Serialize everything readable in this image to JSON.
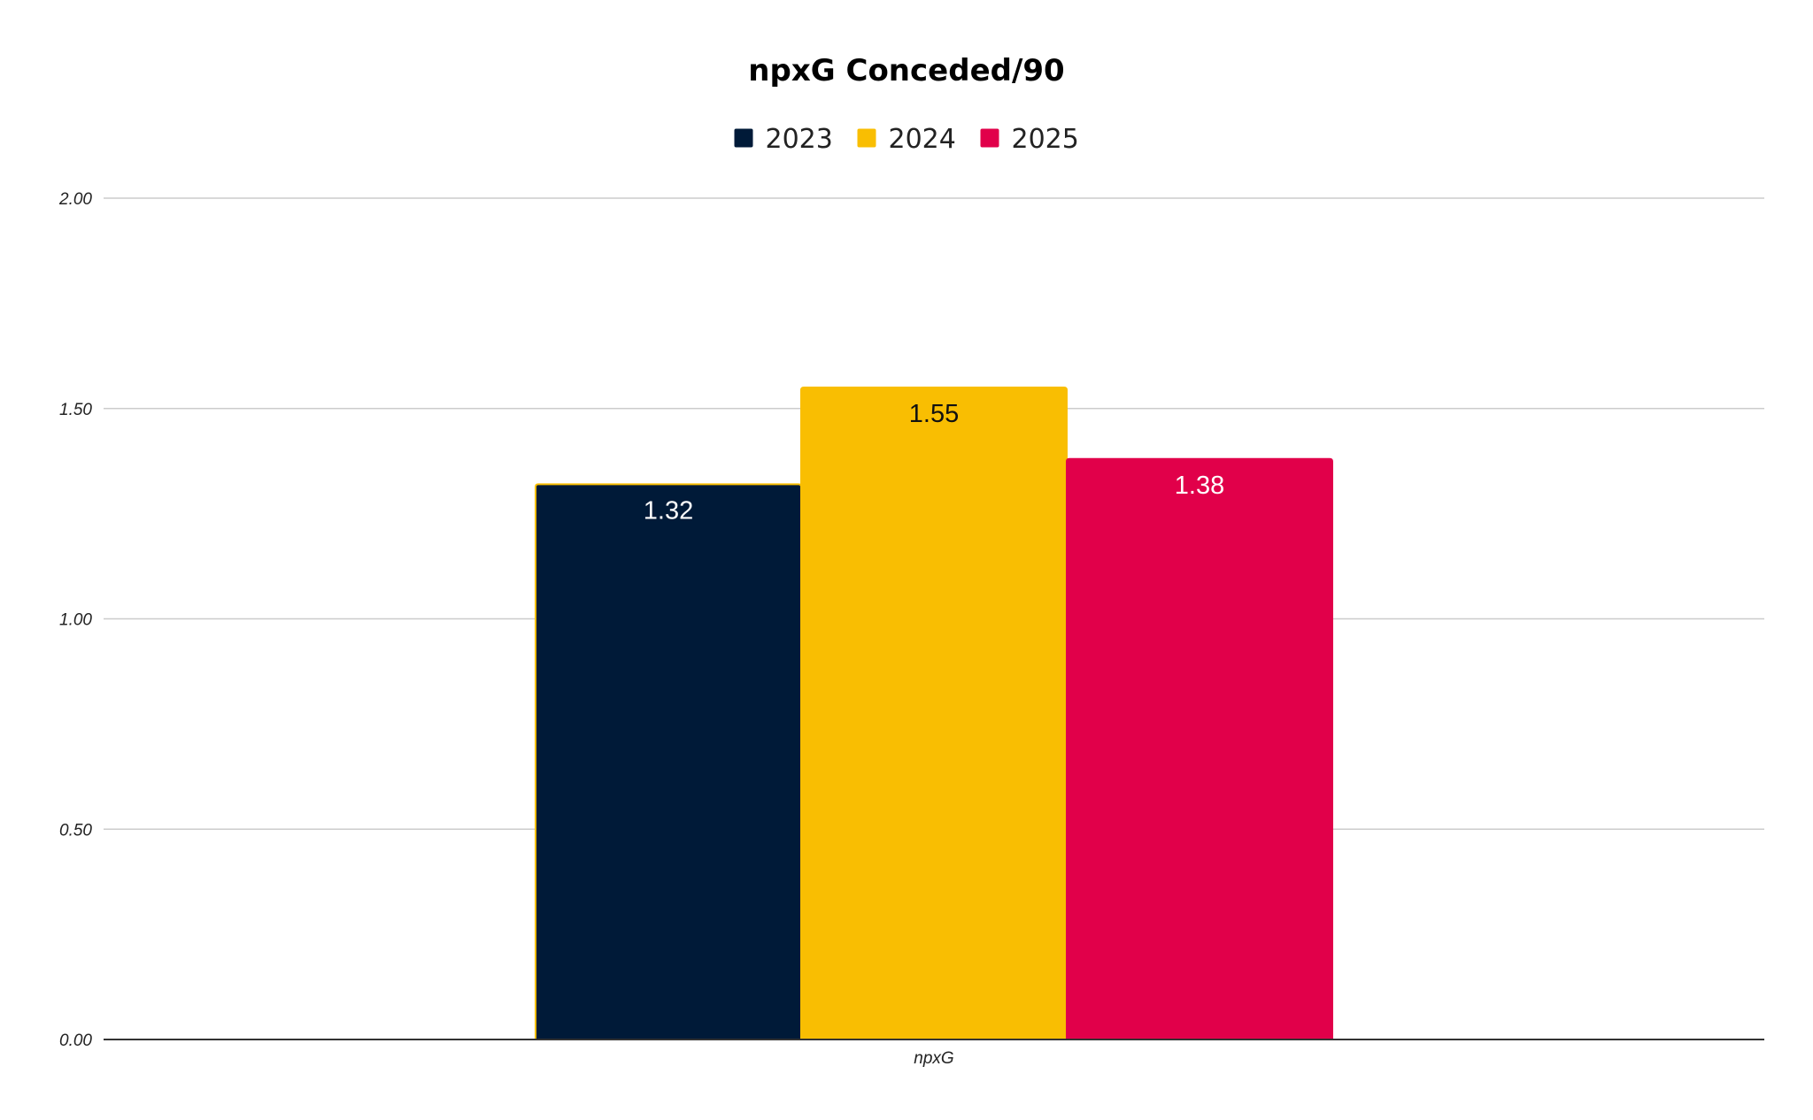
{
  "chart_data": {
    "type": "bar",
    "title": "npxG Conceded/90",
    "xlabel": "",
    "ylabel": "",
    "categories": [
      "npxG"
    ],
    "series": [
      {
        "name": "2023",
        "values": [
          1.32
        ],
        "color": "#001a38",
        "label_color": "#ffffff",
        "border": "#f9be02"
      },
      {
        "name": "2024",
        "values": [
          1.55
        ],
        "color": "#f9be02",
        "label_color": "#111111",
        "border": "#f9be02"
      },
      {
        "name": "2025",
        "values": [
          1.38
        ],
        "color": "#e1004a",
        "label_color": "#ffffff",
        "border": "#e1004a"
      }
    ],
    "data_labels": [
      "1.32",
      "1.55",
      "1.38"
    ],
    "ylim": [
      0,
      2
    ],
    "yticks": [
      0,
      0.5,
      1,
      1.5,
      2
    ],
    "ytick_labels": [
      "0.00",
      "0.50",
      "1.00",
      "1.50",
      "2.00"
    ],
    "grid": true,
    "legend_position": "top-center"
  }
}
